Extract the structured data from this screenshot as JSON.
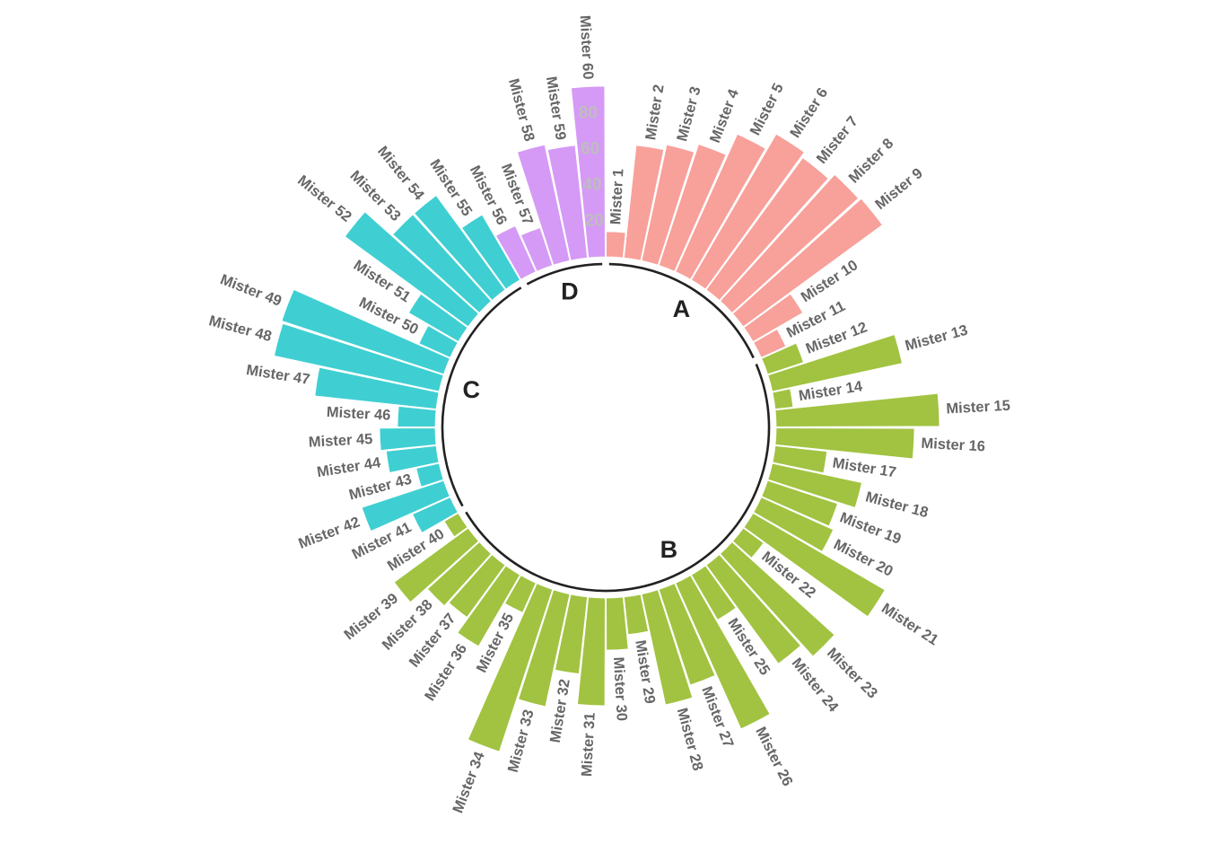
{
  "chart_data": {
    "type": "circular-bar",
    "title": "",
    "xlabel": "",
    "ylabel": "",
    "ylim": [
      -100,
      100
    ],
    "radial_ticks": [
      "20",
      "40",
      "60",
      "80"
    ],
    "radial_tick_values": [
      20,
      40,
      60,
      80
    ],
    "groups": [
      {
        "name": "A",
        "color": "#F8A09A"
      },
      {
        "name": "B",
        "color": "#A1C341"
      },
      {
        "name": "C",
        "color": "#3FCFD2"
      },
      {
        "name": "D",
        "color": "#D59AF5"
      }
    ],
    "categories": [
      "Mister 1",
      "Mister 2",
      "Mister 3",
      "Mister 4",
      "Mister 5",
      "Mister 6",
      "Mister 7",
      "Mister 8",
      "Mister 9",
      "Mister 10",
      "Mister 11",
      "Mister 12",
      "Mister 13",
      "Mister 14",
      "Mister 15",
      "Mister 16",
      "Mister 17",
      "Mister 18",
      "Mister 19",
      "Mister 20",
      "Mister 21",
      "Mister 22",
      "Mister 23",
      "Mister 24",
      "Mister 25",
      "Mister 26",
      "Mister 27",
      "Mister 28",
      "Mister 29",
      "Mister 30",
      "Mister 31",
      "Mister 32",
      "Mister 33",
      "Mister 34",
      "Mister 35",
      "Mister 36",
      "Mister 37",
      "Mister 38",
      "Mister 39",
      "Mister 40",
      "Mister 41",
      "Mister 42",
      "Mister 43",
      "Mister 44",
      "Mister 45",
      "Mister 46",
      "Mister 47",
      "Mister 48",
      "Mister 49",
      "Mister 50",
      "Mister 51",
      "Mister 52",
      "Mister 53",
      "Mister 54",
      "Mister 55",
      "Mister 56",
      "Mister 57",
      "Mister 58",
      "Mister 59",
      "Mister 60"
    ],
    "group_of": [
      "A",
      "A",
      "A",
      "A",
      "A",
      "A",
      "A",
      "A",
      "A",
      "A",
      "A",
      "B",
      "B",
      "B",
      "B",
      "B",
      "B",
      "B",
      "B",
      "B",
      "B",
      "B",
      "B",
      "B",
      "B",
      "B",
      "B",
      "B",
      "B",
      "B",
      "B",
      "B",
      "B",
      "B",
      "B",
      "B",
      "B",
      "B",
      "B",
      "B",
      "C",
      "C",
      "C",
      "C",
      "C",
      "C",
      "C",
      "C",
      "C",
      "C",
      "C",
      "C",
      "C",
      "C",
      "C",
      "D",
      "D",
      "D",
      "D",
      "D"
    ],
    "values": [
      14,
      63,
      66,
      71,
      84,
      94,
      91,
      95,
      96,
      32,
      15,
      21,
      74,
      10,
      91,
      77,
      29,
      51,
      41,
      44,
      85,
      14,
      77,
      68,
      29,
      89,
      56,
      63,
      21,
      29,
      60,
      43,
      64,
      95,
      18,
      46,
      36,
      39,
      51,
      9,
      23,
      48,
      13,
      28,
      31,
      21,
      68,
      94,
      95,
      19,
      32,
      85,
      65,
      65,
      42,
      28,
      22,
      66,
      63,
      95
    ],
    "empty_slots": 0
  }
}
